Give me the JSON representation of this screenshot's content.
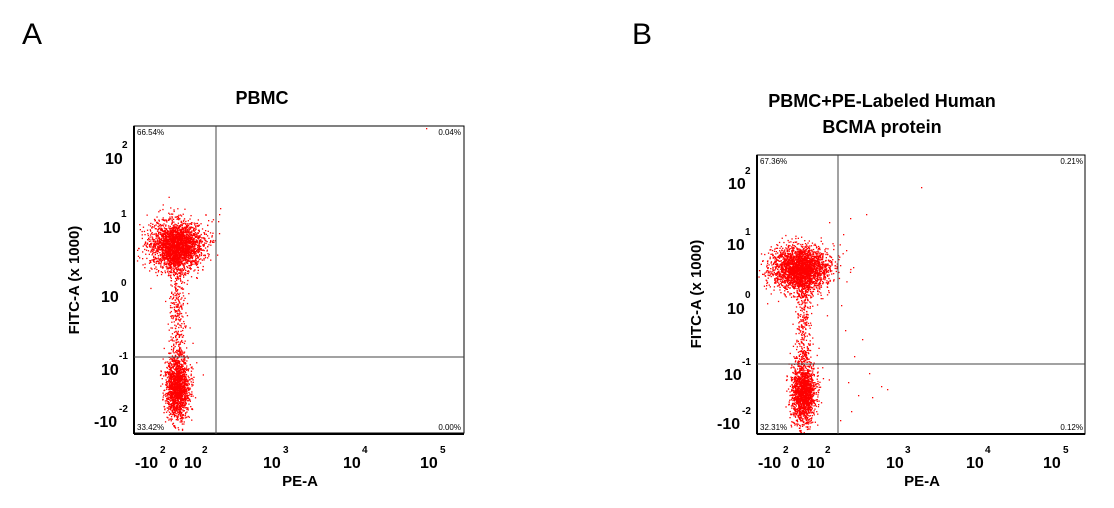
{
  "panels": [
    {
      "letter": "A",
      "chart_data": {
        "type": "scatter",
        "title": "PBMC",
        "xlabel": "PE-A",
        "ylabel": "FITC-A (x 1000)",
        "x_ticks": [
          {
            "base": "-10",
            "exp": "2"
          },
          {
            "base": "0",
            "exp": ""
          },
          {
            "base": "10",
            "exp": "2"
          },
          {
            "base": "10",
            "exp": "3"
          },
          {
            "base": "10",
            "exp": "4"
          },
          {
            "base": "10",
            "exp": "5"
          }
        ],
        "y_ticks": [
          {
            "base": "-10",
            "exp": "-2"
          },
          {
            "base": "10",
            "exp": "-1"
          },
          {
            "base": "10",
            "exp": "0"
          },
          {
            "base": "10",
            "exp": "1"
          },
          {
            "base": "10",
            "exp": "2"
          }
        ],
        "quadrants": {
          "upper_left": "66.54%",
          "upper_right": "0.04%",
          "lower_left": "33.42%",
          "lower_right": "0.00%"
        },
        "point_color": "#ff0000"
      }
    },
    {
      "letter": "B",
      "chart_data": {
        "type": "scatter",
        "title": "PBMC+PE-Labeled Human BCMA protein",
        "title_lines": [
          "PBMC+PE-Labeled Human",
          "BCMA protein"
        ],
        "xlabel": "PE-A",
        "ylabel": "FITC-A (x 1000)",
        "x_ticks": [
          {
            "base": "-10",
            "exp": "2"
          },
          {
            "base": "0",
            "exp": ""
          },
          {
            "base": "10",
            "exp": "2"
          },
          {
            "base": "10",
            "exp": "3"
          },
          {
            "base": "10",
            "exp": "4"
          },
          {
            "base": "10",
            "exp": "5"
          }
        ],
        "y_ticks": [
          {
            "base": "-10",
            "exp": "-2"
          },
          {
            "base": "10",
            "exp": "-1"
          },
          {
            "base": "10",
            "exp": "0"
          },
          {
            "base": "10",
            "exp": "1"
          },
          {
            "base": "10",
            "exp": "2"
          }
        ],
        "quadrants": {
          "upper_left": "67.36%",
          "upper_right": "0.21%",
          "lower_left": "32.31%",
          "lower_right": "0.12%"
        },
        "point_color": "#ff0000"
      }
    }
  ]
}
